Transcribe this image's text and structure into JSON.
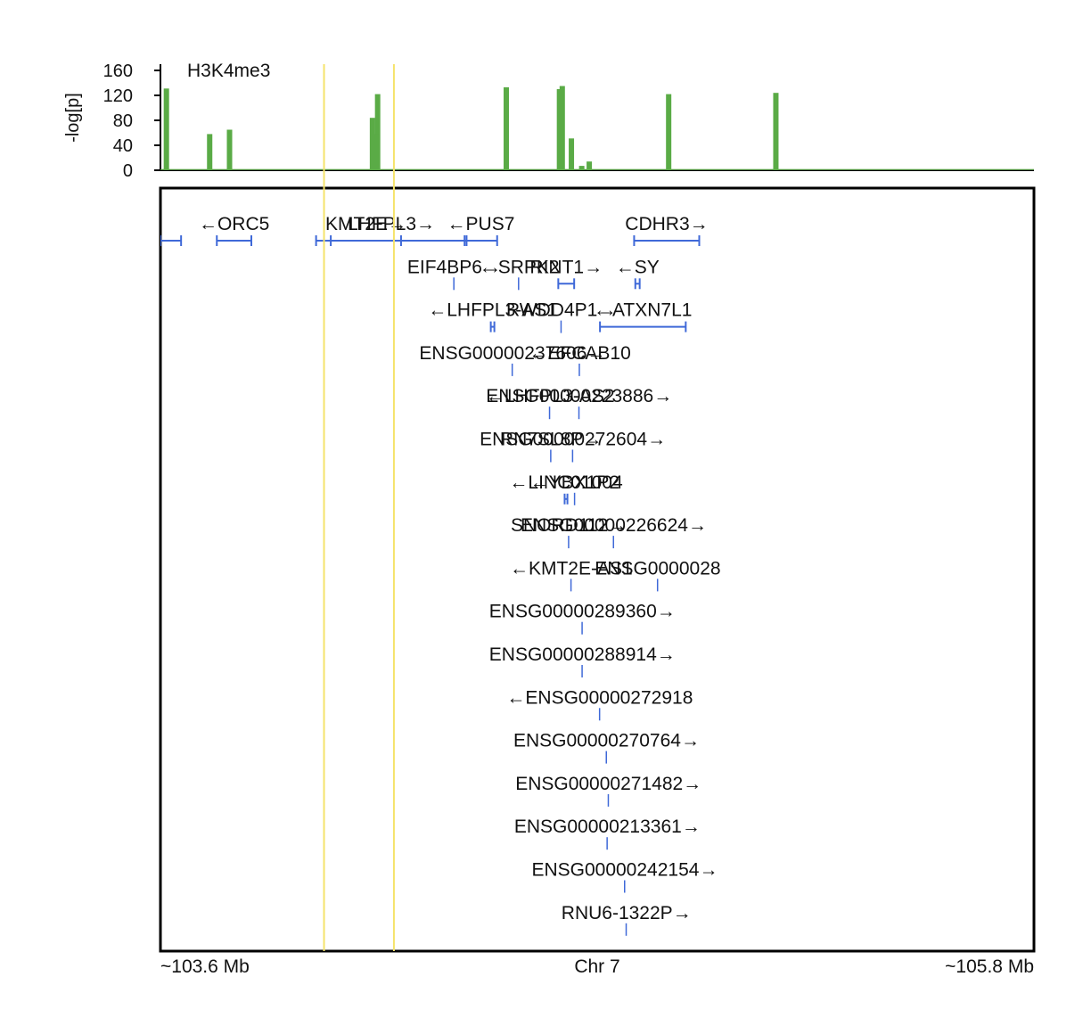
{
  "chart_data": {
    "type": "genome-track",
    "signal_track": {
      "name": "H3K4me3",
      "ylabel": "-log[p]",
      "ylim": [
        0,
        160
      ],
      "yticks": [
        0,
        40,
        80,
        120,
        160
      ],
      "color": "#5aab46",
      "baseline_value": 2,
      "x_unit": "Mb",
      "peaks": [
        {
          "x": 103.61,
          "value": 131
        },
        {
          "x": 103.719,
          "value": 58
        },
        {
          "x": 103.769,
          "value": 65
        },
        {
          "x": 104.129,
          "value": 84
        },
        {
          "x": 104.142,
          "value": 122
        },
        {
          "x": 104.139,
          "value": 58
        },
        {
          "x": 104.466,
          "value": 133
        },
        {
          "x": 104.6,
          "value": 130
        },
        {
          "x": 104.607,
          "value": 135
        },
        {
          "x": 104.63,
          "value": 51
        },
        {
          "x": 104.656,
          "value": 7
        },
        {
          "x": 104.675,
          "value": 14
        },
        {
          "x": 104.875,
          "value": 122
        },
        {
          "x": 105.145,
          "value": 124
        }
      ]
    },
    "region": {
      "chrom_label": "Chr 7",
      "start_label": "~103.6 Mb",
      "end_label": "~105.8 Mb",
      "start_mb": 103.595,
      "end_mb": 105.795
    },
    "highlight_lines": [
      {
        "x": 104.007,
        "color": "#f5e36b"
      },
      {
        "x": 104.183,
        "color": "#f5e36b"
      }
    ],
    "gene_color": "#3f69d8",
    "genes": [
      {
        "row": 0,
        "start": 103.595,
        "end": 103.647,
        "label": "",
        "strand": "-"
      },
      {
        "row": 0,
        "start": 103.737,
        "end": 103.824,
        "label": "ORC5",
        "strand": "-"
      },
      {
        "row": 0,
        "start": 103.987,
        "end": 104.366,
        "label": "LHFPL3",
        "strand": "+"
      },
      {
        "row": 0,
        "start": 104.024,
        "end": 104.201,
        "label": "KMT2E",
        "strand": "+"
      },
      {
        "row": 0,
        "start": 104.361,
        "end": 104.443,
        "label": "PUS7",
        "strand": "-"
      },
      {
        "row": 0,
        "start": 104.788,
        "end": 104.952,
        "label": "CDHR3",
        "strand": "+"
      },
      {
        "row": 1,
        "start": 104.334,
        "end": 104.335,
        "label": "EIF4BP6",
        "strand": "+"
      },
      {
        "row": 1,
        "start": 104.497,
        "end": 104.501,
        "label": "SRPK2",
        "strand": "-"
      },
      {
        "row": 1,
        "start": 104.597,
        "end": 104.637,
        "label": "RINT1",
        "strand": "+"
      },
      {
        "row": 1,
        "start": 104.791,
        "end": 104.802,
        "label": "SY",
        "strand": "-"
      },
      {
        "row": 2,
        "start": 104.427,
        "end": 104.436,
        "label": "LHFPL3-AS1",
        "strand": "-"
      },
      {
        "row": 2,
        "start": 104.604,
        "end": 104.605,
        "label": "RWDD4P1",
        "strand": "+"
      },
      {
        "row": 2,
        "start": 104.702,
        "end": 104.918,
        "label": "ATXN7L1",
        "strand": "-"
      },
      {
        "row": 3,
        "start": 104.481,
        "end": 104.482,
        "label": "ENSG00000237606",
        "strand": "+"
      },
      {
        "row": 3,
        "start": 104.65,
        "end": 104.653,
        "label": "EFCAB10",
        "strand": "-"
      },
      {
        "row": 4,
        "start": 104.575,
        "end": 104.578,
        "label": "LHFPL3-AS2",
        "strand": "-"
      },
      {
        "row": 4,
        "start": 104.649,
        "end": 104.65,
        "label": "ENSG00000223886",
        "strand": "+"
      },
      {
        "row": 5,
        "start": 104.578,
        "end": 104.579,
        "label": "RN7SL8P",
        "strand": "+"
      },
      {
        "row": 5,
        "start": 104.633,
        "end": 104.634,
        "label": "ENSG00000272604",
        "strand": "+"
      },
      {
        "row": 6,
        "start": 104.613,
        "end": 104.62,
        "label": "LINC01004",
        "strand": "-"
      },
      {
        "row": 6,
        "start": 104.638,
        "end": 104.639,
        "label": "YBX1P2",
        "strand": "-"
      },
      {
        "row": 7,
        "start": 104.623,
        "end": 104.624,
        "label": "SNORD112",
        "strand": "+"
      },
      {
        "row": 7,
        "start": 104.736,
        "end": 104.737,
        "label": "ENSG00000226624",
        "strand": "+"
      },
      {
        "row": 8,
        "start": 104.629,
        "end": 104.63,
        "label": "KMT2E-AS1",
        "strand": "-"
      },
      {
        "row": 8,
        "start": 104.847,
        "end": 104.848,
        "label": "ENSG0000028",
        "strand": ""
      },
      {
        "row": 9,
        "start": 104.657,
        "end": 104.658,
        "label": "ENSG00000289360",
        "strand": "+"
      },
      {
        "row": 10,
        "start": 104.657,
        "end": 104.658,
        "label": "ENSG00000288914",
        "strand": "+"
      },
      {
        "row": 11,
        "start": 104.701,
        "end": 104.702,
        "label": "ENSG00000272918",
        "strand": "-"
      },
      {
        "row": 12,
        "start": 104.718,
        "end": 104.719,
        "label": "ENSG00000270764",
        "strand": "+"
      },
      {
        "row": 13,
        "start": 104.723,
        "end": 104.724,
        "label": "ENSG00000271482",
        "strand": "+"
      },
      {
        "row": 14,
        "start": 104.72,
        "end": 104.721,
        "label": "ENSG00000213361",
        "strand": "+"
      },
      {
        "row": 15,
        "start": 104.764,
        "end": 104.765,
        "label": "ENSG00000242154",
        "strand": "+"
      },
      {
        "row": 16,
        "start": 104.768,
        "end": 104.769,
        "label": "RNU6-1322P",
        "strand": "+"
      }
    ]
  }
}
